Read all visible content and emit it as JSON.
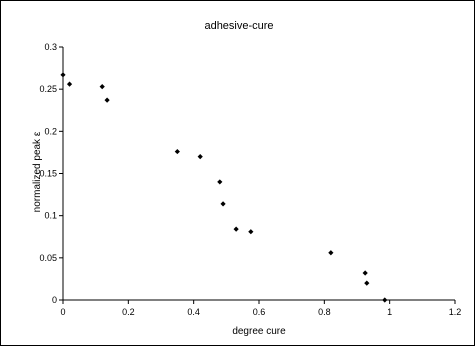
{
  "chart_data": {
    "type": "scatter",
    "title": "adhesive-cure",
    "xlabel": "degree cure",
    "ylabel": "normalized peak ε",
    "xlim": [
      0,
      1.2
    ],
    "ylim": [
      0,
      0.3
    ],
    "xticks": [
      "0",
      "0.2",
      "0.4",
      "0.6",
      "0.8",
      "1",
      "1.2"
    ],
    "yticks": [
      "0",
      "0.05",
      "0.1",
      "0.15",
      "0.2",
      "0.25",
      "0.3"
    ],
    "grid": false,
    "legend": "none",
    "marker_color": "#000000",
    "points": [
      {
        "x": 0.0,
        "y": 0.267
      },
      {
        "x": 0.02,
        "y": 0.256
      },
      {
        "x": 0.12,
        "y": 0.253
      },
      {
        "x": 0.135,
        "y": 0.237
      },
      {
        "x": 0.35,
        "y": 0.176
      },
      {
        "x": 0.42,
        "y": 0.17
      },
      {
        "x": 0.48,
        "y": 0.14
      },
      {
        "x": 0.49,
        "y": 0.114
      },
      {
        "x": 0.53,
        "y": 0.084
      },
      {
        "x": 0.575,
        "y": 0.081
      },
      {
        "x": 0.82,
        "y": 0.056
      },
      {
        "x": 0.925,
        "y": 0.032
      },
      {
        "x": 0.93,
        "y": 0.02
      },
      {
        "x": 0.985,
        "y": 0.0
      }
    ]
  }
}
